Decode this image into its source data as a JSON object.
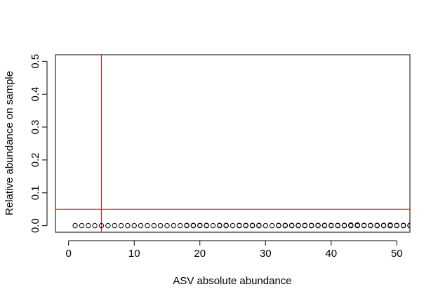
{
  "chart_data": {
    "type": "scatter",
    "title": "",
    "xlabel": "ASV absolute abundance",
    "ylabel": "Relative abundance on sample",
    "xlim": [
      -2,
      52
    ],
    "ylim": [
      -0.02,
      0.52
    ],
    "xticks": [
      0,
      10,
      20,
      30,
      40,
      50
    ],
    "yticks": [
      0.0,
      0.1,
      0.2,
      0.3,
      0.4,
      0.5
    ],
    "xtick_labels": [
      "0",
      "10",
      "20",
      "30",
      "40",
      "50"
    ],
    "ytick_labels": [
      "0.0",
      "0.1",
      "0.2",
      "0.3",
      "0.4",
      "0.5"
    ],
    "grid": false,
    "legend": "none",
    "marker": "open-circle",
    "marker_color": "#000000",
    "reference_lines": [
      {
        "orientation": "vertical",
        "value": 5,
        "color": "#ff0000"
      },
      {
        "orientation": "horizontal",
        "value": 0.05,
        "color": "#ff0000"
      }
    ],
    "points": [
      {
        "x": 1,
        "y": 0.0
      },
      {
        "x": 2,
        "y": 0.0
      },
      {
        "x": 3,
        "y": 0.0
      },
      {
        "x": 4,
        "y": 0.0
      },
      {
        "x": 5,
        "y": 0.0
      },
      {
        "x": 6,
        "y": 0.0
      },
      {
        "x": 7,
        "y": 0.0
      },
      {
        "x": 8,
        "y": 0.0
      },
      {
        "x": 9,
        "y": 0.0
      },
      {
        "x": 10,
        "y": 0.0
      },
      {
        "x": 11,
        "y": 0.0
      },
      {
        "x": 12,
        "y": 0.0
      },
      {
        "x": 13,
        "y": 0.0
      },
      {
        "x": 14,
        "y": 0.0
      },
      {
        "x": 15,
        "y": 0.0
      },
      {
        "x": 16,
        "y": 0.0
      },
      {
        "x": 17,
        "y": 0.0
      },
      {
        "x": 18,
        "y": 0.0
      },
      {
        "x": 18,
        "y": 0.001
      },
      {
        "x": 19,
        "y": 0.0
      },
      {
        "x": 19,
        "y": 0.001
      },
      {
        "x": 20,
        "y": 0.0
      },
      {
        "x": 20,
        "y": 0.001
      },
      {
        "x": 21,
        "y": 0.0
      },
      {
        "x": 21,
        "y": 0.001
      },
      {
        "x": 22,
        "y": 0.0
      },
      {
        "x": 23,
        "y": 0.0
      },
      {
        "x": 23,
        "y": 0.001
      },
      {
        "x": 24,
        "y": 0.0
      },
      {
        "x": 24,
        "y": 0.001
      },
      {
        "x": 25,
        "y": 0.0
      },
      {
        "x": 26,
        "y": 0.0
      },
      {
        "x": 26,
        "y": 0.001
      },
      {
        "x": 27,
        "y": 0.0
      },
      {
        "x": 27,
        "y": 0.001
      },
      {
        "x": 28,
        "y": 0.0
      },
      {
        "x": 28,
        "y": 0.001
      },
      {
        "x": 29,
        "y": 0.0
      },
      {
        "x": 29,
        "y": 0.001
      },
      {
        "x": 30,
        "y": 0.0
      },
      {
        "x": 31,
        "y": 0.0
      },
      {
        "x": 32,
        "y": 0.0
      },
      {
        "x": 32,
        "y": 0.001
      },
      {
        "x": 33,
        "y": 0.0
      },
      {
        "x": 33,
        "y": 0.001
      },
      {
        "x": 34,
        "y": 0.0
      },
      {
        "x": 34,
        "y": 0.001
      },
      {
        "x": 35,
        "y": 0.0
      },
      {
        "x": 35,
        "y": 0.001
      },
      {
        "x": 36,
        "y": 0.0
      },
      {
        "x": 36,
        "y": 0.001
      },
      {
        "x": 37,
        "y": 0.0
      },
      {
        "x": 37,
        "y": 0.001
      },
      {
        "x": 38,
        "y": 0.0
      },
      {
        "x": 38,
        "y": 0.001
      },
      {
        "x": 39,
        "y": 0.0
      },
      {
        "x": 39,
        "y": 0.001
      },
      {
        "x": 40,
        "y": 0.0
      },
      {
        "x": 40,
        "y": 0.001
      },
      {
        "x": 41,
        "y": 0.0
      },
      {
        "x": 41,
        "y": 0.001
      },
      {
        "x": 42,
        "y": 0.0
      },
      {
        "x": 42,
        "y": 0.001
      },
      {
        "x": 43,
        "y": 0.0
      },
      {
        "x": 43,
        "y": 0.002
      },
      {
        "x": 44,
        "y": 0.0
      },
      {
        "x": 44,
        "y": 0.001
      },
      {
        "x": 44,
        "y": 0.002
      },
      {
        "x": 45,
        "y": 0.0
      },
      {
        "x": 45,
        "y": 0.001
      },
      {
        "x": 46,
        "y": 0.0
      },
      {
        "x": 46,
        "y": 0.001
      },
      {
        "x": 47,
        "y": 0.0
      },
      {
        "x": 47,
        "y": 0.001
      },
      {
        "x": 48,
        "y": 0.0
      },
      {
        "x": 48,
        "y": 0.001
      },
      {
        "x": 49,
        "y": 0.0
      },
      {
        "x": 49,
        "y": 0.001
      },
      {
        "x": 49,
        "y": 0.002
      },
      {
        "x": 50,
        "y": 0.0
      },
      {
        "x": 50,
        "y": 0.001
      },
      {
        "x": 51,
        "y": 0.0
      },
      {
        "x": 51,
        "y": 0.001
      },
      {
        "x": 52,
        "y": 0.0
      },
      {
        "x": 52,
        "y": 0.001
      }
    ]
  }
}
